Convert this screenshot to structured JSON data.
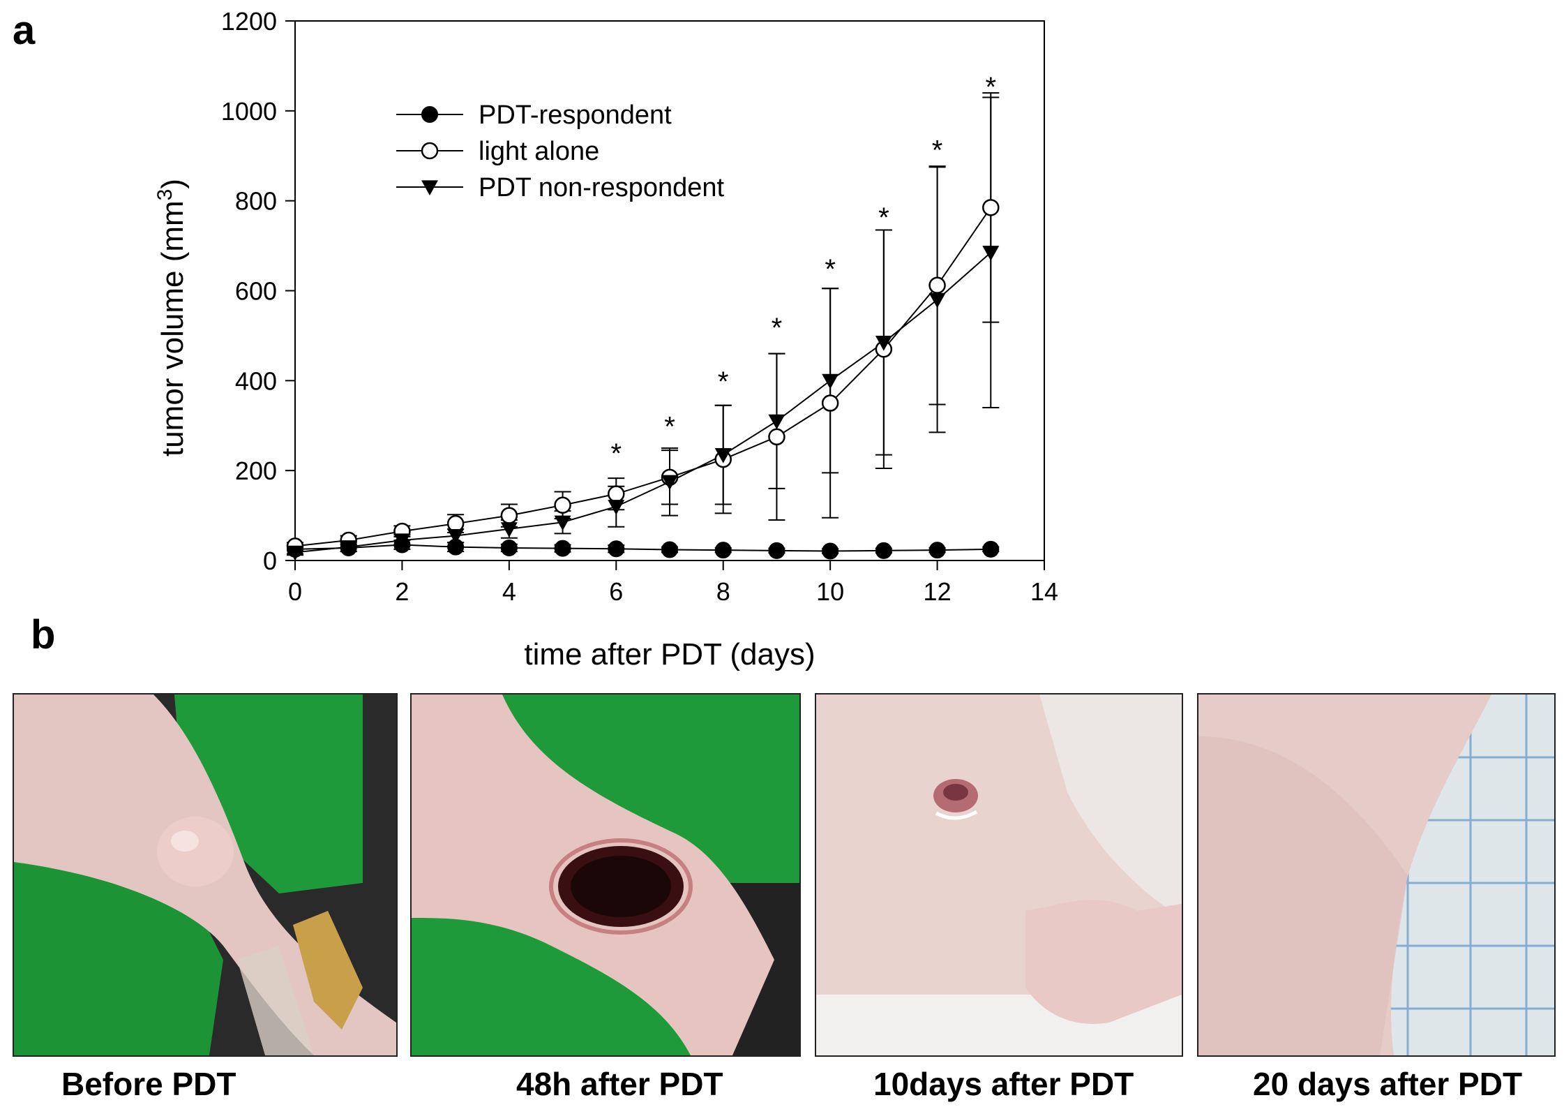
{
  "panels": {
    "a": "a",
    "b": "b"
  },
  "chart_data": {
    "type": "line",
    "title": "",
    "xlabel": "time after PDT (days)",
    "ylabel": "tumor volume (mm",
    "ylabel_sup": "3",
    "ylabel_close": ")",
    "xlim": [
      0,
      14
    ],
    "ylim": [
      0,
      1200
    ],
    "xticks": [
      0,
      2,
      4,
      6,
      8,
      10,
      12,
      14
    ],
    "yticks": [
      0,
      200,
      400,
      600,
      800,
      1000,
      1200
    ],
    "legend_position": "top-left",
    "significance_marker": "*",
    "significant_days": [
      6,
      7,
      8,
      9,
      10,
      11,
      12,
      13
    ],
    "significance_y": [
      245,
      305,
      405,
      525,
      655,
      770,
      920,
      1060
    ],
    "series": [
      {
        "name": "PDT-respondent",
        "marker": "filled-circle",
        "x": [
          0,
          1,
          2,
          3,
          4,
          5,
          6,
          7,
          8,
          9,
          10,
          11,
          12,
          13
        ],
        "y": [
          25,
          28,
          35,
          30,
          28,
          27,
          26,
          24,
          23,
          22,
          21,
          22,
          23,
          25
        ],
        "err": [
          10,
          8,
          10,
          10,
          8,
          8,
          8,
          6,
          5,
          5,
          5,
          5,
          5,
          5
        ]
      },
      {
        "name": "light alone",
        "marker": "open-circle",
        "x": [
          0,
          1,
          2,
          3,
          4,
          5,
          6,
          7,
          8,
          9,
          10,
          11,
          12,
          13
        ],
        "y": [
          32,
          45,
          65,
          82,
          100,
          123,
          148,
          185,
          225,
          275,
          350,
          470,
          612,
          785
        ],
        "err": [
          8,
          10,
          12,
          20,
          25,
          30,
          35,
          60,
          120,
          185,
          255,
          265,
          265,
          255
        ]
      },
      {
        "name": "PDT non-respondent",
        "marker": "filled-triangle-down",
        "x": [
          0,
          1,
          2,
          3,
          4,
          5,
          6,
          7,
          8,
          9,
          10,
          11,
          12,
          13
        ],
        "y": [
          18,
          30,
          45,
          55,
          70,
          85,
          120,
          175,
          235,
          310,
          400,
          485,
          580,
          685
        ],
        "err": [
          6,
          10,
          12,
          15,
          20,
          25,
          45,
          75,
          110,
          150,
          205,
          250,
          295,
          345
        ]
      }
    ]
  },
  "photos": [
    {
      "caption": "Before PDT"
    },
    {
      "caption": "48h after PDT"
    },
    {
      "caption": "10days after PDT"
    },
    {
      "caption": "20 days after PDT"
    }
  ]
}
